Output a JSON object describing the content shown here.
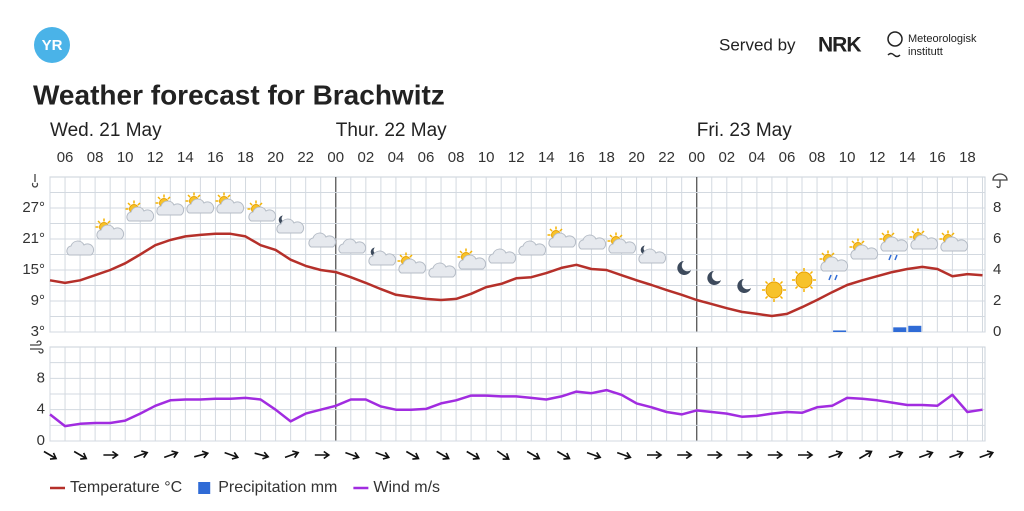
{
  "header": {
    "logo": "YR",
    "served_by": "Served by",
    "partner": "NRK",
    "institute": [
      "Meteorologisk",
      "institutt"
    ]
  },
  "title": "Weather forecast for Brachwitz",
  "chart_data": [
    {
      "type": "line",
      "days": [
        "Wed. 21 May",
        "Thur. 22 May",
        "Fri. 23 May"
      ],
      "categories": [
        null,
        "06",
        null,
        "08",
        null,
        "10",
        null,
        "12",
        null,
        "14",
        null,
        "16",
        null,
        "18",
        null,
        "20",
        null,
        "22",
        null,
        "00",
        null,
        "02",
        null,
        "04",
        null,
        "06",
        null,
        "08",
        null,
        "10",
        null,
        "12",
        null,
        "14",
        null,
        "16",
        null,
        "18",
        null,
        "20",
        null,
        "22",
        null,
        "00",
        null,
        "02",
        null,
        "04",
        null,
        "06",
        null,
        "08",
        null,
        "10",
        null,
        "12",
        null,
        "14",
        null,
        "16",
        null,
        "18",
        null
      ],
      "series": [
        {
          "name": "Temperature °C",
          "color": "#b5302a",
          "values": [
            13,
            12.5,
            13,
            14,
            15,
            16.3,
            18,
            19.8,
            20.8,
            21.5,
            21.8,
            22,
            22,
            21.5,
            19.8,
            18.9,
            17,
            15.8,
            15,
            14.6,
            13.6,
            12.5,
            11.3,
            10.2,
            9.8,
            9.4,
            9.2,
            9.4,
            10.4,
            11.7,
            12.3,
            13.4,
            13.6,
            14.4,
            15.4,
            16,
            15.2,
            15,
            14,
            13,
            12.1,
            11.1,
            10.2,
            9.2,
            8.4,
            7.6,
            6.9,
            6.5,
            6.1,
            6.5,
            7.8,
            9.2,
            10.7,
            12.1,
            13,
            13.8,
            14.6,
            15.2,
            15.6,
            15.2,
            13.8,
            14.2,
            14
          ]
        },
        {
          "name": "Precipitation mm",
          "color": "#2f6bd6",
          "axis": "y2",
          "type": "bar",
          "values": [
            0,
            0,
            0,
            0,
            0,
            0,
            0,
            0,
            0,
            0,
            0,
            0,
            0,
            0,
            0,
            0,
            0,
            0,
            0,
            0,
            0,
            0,
            0,
            0,
            0,
            0,
            0,
            0,
            0,
            0,
            0,
            0,
            0,
            0,
            0,
            0,
            0,
            0,
            0,
            0,
            0,
            0,
            0,
            0,
            0,
            0,
            0,
            0,
            0,
            0,
            0,
            0,
            0.1,
            0,
            0,
            0,
            0.3,
            0.4,
            0,
            0,
            0,
            0,
            0
          ]
        }
      ],
      "ylim": [
        3,
        33
      ],
      "yticks": [
        {
          "value": 3,
          "label": "3°"
        },
        {
          "value": 9,
          "label": "9°"
        },
        {
          "value": 15,
          "label": "15°"
        },
        {
          "value": 21,
          "label": "21°"
        },
        {
          "value": 27,
          "label": "27°"
        }
      ],
      "y2lim": [
        0,
        10
      ],
      "y2ticks": [
        0,
        2,
        4,
        6,
        8
      ],
      "grid": true
    },
    {
      "type": "line",
      "series": [
        {
          "name": "Wind m/s",
          "color": "#a12ce0",
          "values": [
            3.4,
            1.9,
            2.2,
            2.3,
            2.3,
            2.6,
            3.5,
            4.5,
            5.2,
            5.3,
            5.3,
            5.4,
            5.4,
            5.5,
            5.3,
            4,
            2.5,
            3.5,
            4,
            4.5,
            5.3,
            5.3,
            4.4,
            4,
            4,
            4.1,
            4.8,
            5.2,
            5.8,
            5.8,
            5.7,
            5.7,
            5.5,
            5.3,
            5.7,
            6.3,
            6.1,
            6.5,
            5.9,
            4.8,
            4.3,
            3.7,
            3.4,
            3.9,
            3.7,
            3.5,
            3.1,
            3.2,
            3.5,
            3.7,
            3.6,
            4.3,
            4.5,
            5.5,
            5.4,
            5.2,
            4.9,
            4.6,
            4.6,
            4.5,
            5.9,
            3.7,
            4
          ]
        }
      ],
      "ylim": [
        0,
        12
      ],
      "yticks": [
        0,
        4,
        8
      ],
      "grid": true
    }
  ]
}
